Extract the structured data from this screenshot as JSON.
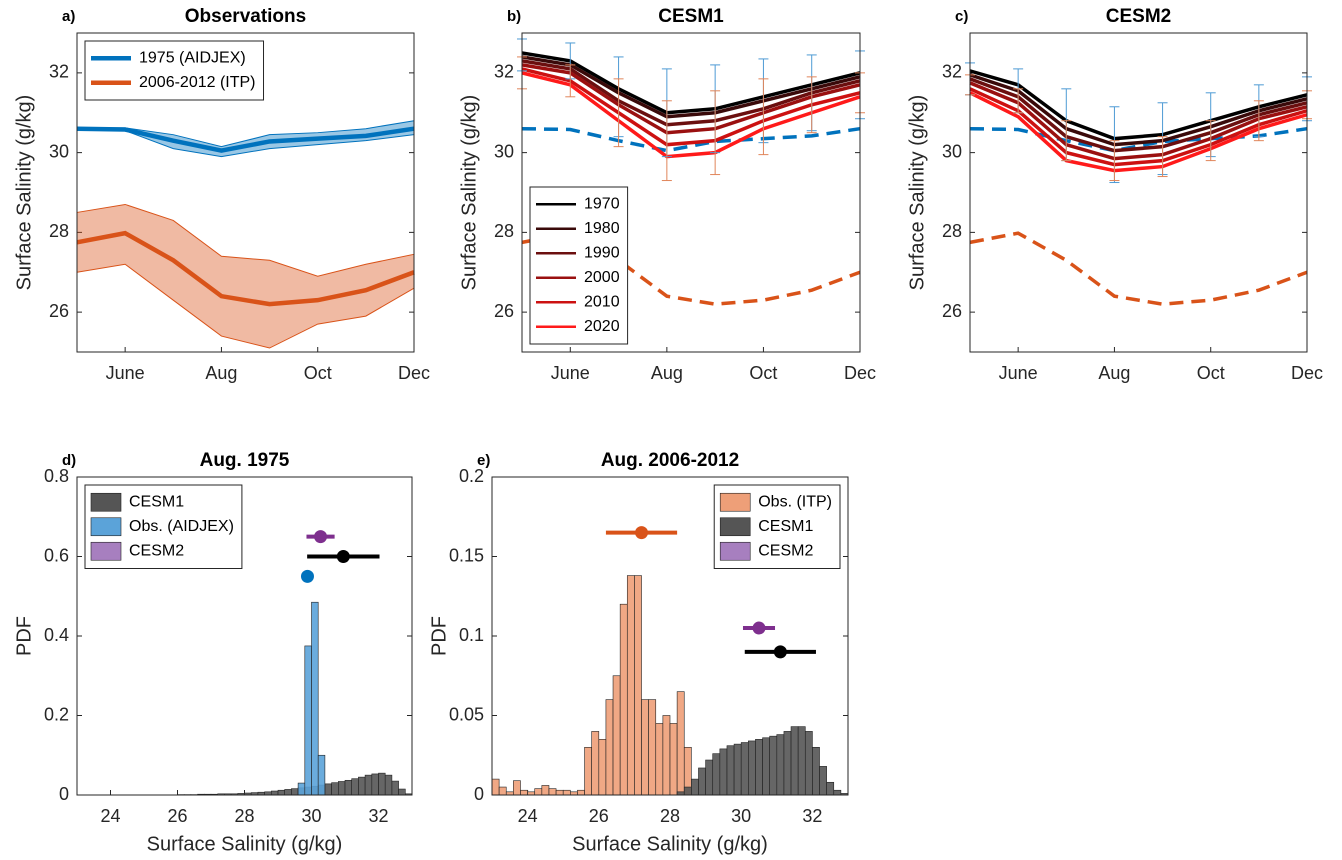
{
  "chart_data": [
    {
      "type": "line",
      "panel_label": "a)",
      "title": "Observations",
      "ylabel": "Surface Salinity (g/kg)",
      "categories": [
        null,
        "June",
        null,
        "Aug",
        null,
        "Oct",
        null,
        "Dec"
      ],
      "ylim": [
        25,
        33
      ],
      "yticks": [
        26,
        28,
        30,
        32
      ],
      "legend": "upper left",
      "series": [
        {
          "name": "1975 (AIDJEX)",
          "color": "#0072bd",
          "values": [
            30.6,
            30.58,
            30.3,
            30.05,
            30.28,
            30.35,
            30.42,
            30.6
          ],
          "lower": [
            30.58,
            30.55,
            30.1,
            29.9,
            30.1,
            30.2,
            30.3,
            30.45
          ],
          "upper": [
            30.62,
            30.62,
            30.45,
            30.15,
            30.45,
            30.5,
            30.6,
            30.8
          ]
        },
        {
          "name": "2006-2012 (ITP)",
          "color": "#d95319",
          "values": [
            27.75,
            27.98,
            27.3,
            26.4,
            26.2,
            26.3,
            26.55,
            27.0
          ],
          "lower": [
            27.0,
            27.2,
            26.3,
            25.4,
            25.1,
            25.7,
            25.9,
            26.6
          ],
          "upper": [
            28.5,
            28.7,
            28.3,
            27.4,
            27.3,
            26.9,
            27.2,
            27.45
          ]
        }
      ]
    },
    {
      "type": "line",
      "panel_label": "b)",
      "title": "CESM1",
      "ylabel": "Surface Salinity (g/kg)",
      "categories": [
        null,
        "June",
        null,
        "Aug",
        null,
        "Oct",
        null,
        "Dec"
      ],
      "ylim": [
        25,
        33
      ],
      "yticks": [
        26,
        28,
        30,
        32
      ],
      "legend": "lower left",
      "reference_lines": [
        {
          "color": "#0072bd",
          "dashed": true,
          "values": [
            30.6,
            30.58,
            30.3,
            30.05,
            30.28,
            30.35,
            30.42,
            30.6
          ]
        },
        {
          "color": "#d95319",
          "dashed": true,
          "values": [
            27.75,
            27.98,
            27.3,
            26.4,
            26.2,
            26.3,
            26.55,
            27.0
          ]
        }
      ],
      "errorbars": [
        {
          "color": "#4d9ad4",
          "values": [
            32.45,
            32.3,
            31.4,
            31.0,
            31.1,
            31.3,
            31.5,
            31.7
          ],
          "errors": [
            0.4,
            0.45,
            1.0,
            1.1,
            1.1,
            1.05,
            0.95,
            0.85
          ]
        },
        {
          "color": "#e0855a",
          "values": [
            32.0,
            31.8,
            31.0,
            30.3,
            30.5,
            30.9,
            31.2,
            31.5
          ],
          "errors": [
            0.4,
            0.4,
            0.85,
            1.0,
            1.05,
            0.95,
            0.7,
            0.5
          ]
        }
      ],
      "series": [
        {
          "name": "1970",
          "color": "#000000",
          "values": [
            32.5,
            32.3,
            31.6,
            31.0,
            31.1,
            31.4,
            31.7,
            32.0
          ]
        },
        {
          "name": "1980",
          "color": "#3a0a0a",
          "values": [
            32.4,
            32.2,
            31.5,
            30.9,
            31.0,
            31.3,
            31.6,
            31.9
          ]
        },
        {
          "name": "1990",
          "color": "#6b0f0f",
          "values": [
            32.3,
            32.1,
            31.3,
            30.7,
            30.8,
            31.1,
            31.5,
            31.8
          ]
        },
        {
          "name": "2000",
          "color": "#9a1010",
          "values": [
            32.2,
            32.0,
            31.2,
            30.5,
            30.6,
            31.0,
            31.4,
            31.7
          ]
        },
        {
          "name": "2010",
          "color": "#cc1111",
          "values": [
            32.1,
            31.8,
            31.0,
            30.2,
            30.3,
            30.8,
            31.2,
            31.5
          ]
        },
        {
          "name": "2020",
          "color": "#ff1a1a",
          "values": [
            32.0,
            31.7,
            30.8,
            29.9,
            30.0,
            30.6,
            31.0,
            31.4
          ]
        }
      ]
    },
    {
      "type": "line",
      "panel_label": "c)",
      "title": "CESM2",
      "ylabel": "Surface Salinity (g/kg)",
      "categories": [
        null,
        "June",
        null,
        "Aug",
        null,
        "Oct",
        null,
        "Dec"
      ],
      "ylim": [
        25,
        33
      ],
      "yticks": [
        26,
        28,
        30,
        32
      ],
      "reference_lines": [
        {
          "color": "#0072bd",
          "dashed": true,
          "values": [
            30.6,
            30.58,
            30.3,
            30.05,
            30.28,
            30.35,
            30.42,
            30.6
          ]
        },
        {
          "color": "#d95319",
          "dashed": true,
          "values": [
            27.75,
            27.98,
            27.3,
            26.4,
            26.2,
            26.3,
            26.55,
            27.0
          ]
        }
      ],
      "errorbars": [
        {
          "color": "#4d9ad4",
          "values": [
            31.85,
            31.55,
            30.7,
            30.2,
            30.35,
            30.7,
            31.05,
            31.35
          ],
          "errors": [
            0.4,
            0.55,
            0.9,
            0.95,
            0.9,
            0.8,
            0.65,
            0.55
          ]
        },
        {
          "color": "#e0855a",
          "values": [
            31.7,
            31.3,
            30.3,
            29.8,
            29.9,
            30.3,
            30.8,
            31.2
          ],
          "errors": [
            0.25,
            0.3,
            0.5,
            0.5,
            0.5,
            0.5,
            0.5,
            0.35
          ]
        }
      ],
      "series": [
        {
          "color": "#000000",
          "values": [
            32.05,
            31.7,
            30.8,
            30.35,
            30.45,
            30.8,
            31.15,
            31.45
          ]
        },
        {
          "color": "#3a0a0a",
          "values": [
            31.95,
            31.55,
            30.6,
            30.2,
            30.3,
            30.65,
            31.05,
            31.35
          ]
        },
        {
          "color": "#6b0f0f",
          "values": [
            31.85,
            31.4,
            30.4,
            30.05,
            30.15,
            30.5,
            30.95,
            31.25
          ]
        },
        {
          "color": "#9a1010",
          "values": [
            31.75,
            31.25,
            30.2,
            29.85,
            29.95,
            30.35,
            30.85,
            31.15
          ]
        },
        {
          "color": "#cc1111",
          "values": [
            31.6,
            31.05,
            30.0,
            29.7,
            29.8,
            30.2,
            30.7,
            31.05
          ]
        },
        {
          "color": "#ff1a1a",
          "values": [
            31.5,
            30.9,
            29.8,
            29.55,
            29.65,
            30.1,
            30.6,
            30.95
          ]
        }
      ]
    },
    {
      "type": "histogram",
      "panel_label": "d)",
      "title": "Aug. 1975",
      "ylabel": "PDF",
      "xlabel": "Surface Salinity (g/kg)",
      "xlim": [
        23,
        33
      ],
      "xticks": [
        24,
        26,
        28,
        30,
        32
      ],
      "ylim": [
        0,
        0.8
      ],
      "yticks": [
        0,
        0.2,
        0.4,
        0.6,
        0.8
      ],
      "legend": "upper left",
      "series": [
        {
          "name": "CESM1",
          "color": "#555555",
          "bins": [
            26.0,
            26.2,
            26.4,
            26.6,
            26.8,
            27.0,
            27.2,
            27.4,
            27.6,
            27.8,
            28.0,
            28.2,
            28.4,
            28.6,
            28.8,
            29.0,
            29.2,
            29.4,
            29.6,
            29.8,
            30.0,
            30.2,
            30.4,
            30.6,
            30.8,
            31.0,
            31.2,
            31.4,
            31.6,
            31.8,
            32.0,
            32.2,
            32.4,
            32.6,
            32.8,
            33.0
          ],
          "values": [
            0.001,
            0.001,
            0.001,
            0.002,
            0.002,
            0.002,
            0.003,
            0.003,
            0.003,
            0.004,
            0.005,
            0.006,
            0.007,
            0.008,
            0.01,
            0.012,
            0.014,
            0.016,
            0.018,
            0.02,
            0.022,
            0.025,
            0.028,
            0.031,
            0.034,
            0.037,
            0.041,
            0.045,
            0.05,
            0.053,
            0.055,
            0.05,
            0.035,
            0.015,
            0.003
          ],
          "mean": {
            "x": 30.95,
            "xerr": 1.08,
            "y": 0.6
          },
          "marker_color": "#000000"
        },
        {
          "name": "Obs. (AIDJEX)",
          "color": "#5ba3d9",
          "bins": [
            29.6,
            29.8,
            30.0,
            30.2,
            30.4
          ],
          "values": [
            0.03,
            0.375,
            0.485,
            0.1
          ],
          "mean": {
            "x": 29.88,
            "y": 0.55
          },
          "marker_color": "#0072bd"
        },
        {
          "name": "CESM2",
          "color": "#a77fbf",
          "mean": {
            "x": 30.27,
            "xerr": 0.42,
            "y": 0.65
          },
          "marker_color": "#7e2f8e"
        }
      ]
    },
    {
      "type": "histogram",
      "panel_label": "e)",
      "title": "Aug. 2006-2012",
      "ylabel": "PDF",
      "xlabel": "Surface Salinity (g/kg)",
      "xlim": [
        23,
        33
      ],
      "xticks": [
        24,
        26,
        28,
        30,
        32
      ],
      "ylim": [
        0,
        0.2
      ],
      "yticks": [
        0,
        0.05,
        0.1,
        0.15,
        0.2
      ],
      "legend": "upper right",
      "series": [
        {
          "name": "Obs. (ITP)",
          "color": "#ee9f78",
          "bins": [
            23.0,
            23.2,
            23.4,
            23.6,
            23.8,
            24.0,
            24.2,
            24.4,
            24.6,
            24.8,
            25.0,
            25.2,
            25.4,
            25.6,
            25.8,
            26.0,
            26.2,
            26.4,
            26.6,
            26.8,
            27.0,
            27.2,
            27.4,
            27.6,
            27.8,
            28.0,
            28.2,
            28.4,
            28.6
          ],
          "values": [
            0.01,
            0.005,
            0.002,
            0.009,
            0.003,
            0.002,
            0.004,
            0.006,
            0.004,
            0.003,
            0.003,
            0.002,
            0.003,
            0.03,
            0.04,
            0.035,
            0.06,
            0.075,
            0.12,
            0.138,
            0.138,
            0.06,
            0.06,
            0.045,
            0.05,
            0.045,
            0.065,
            0.03
          ],
          "mean": {
            "x": 27.2,
            "xerr": 1.0,
            "y": 0.165
          },
          "marker_color": "#d95319"
        },
        {
          "name": "CESM1",
          "color": "#555555",
          "bins": [
            28.2,
            28.4,
            28.6,
            28.8,
            29.0,
            29.2,
            29.4,
            29.6,
            29.8,
            30.0,
            30.2,
            30.4,
            30.6,
            30.8,
            31.0,
            31.2,
            31.4,
            31.6,
            31.8,
            32.0,
            32.2,
            32.4,
            32.6,
            32.8,
            33.0
          ],
          "values": [
            0.002,
            0.005,
            0.01,
            0.017,
            0.022,
            0.026,
            0.029,
            0.031,
            0.032,
            0.033,
            0.034,
            0.035,
            0.036,
            0.037,
            0.038,
            0.04,
            0.043,
            0.043,
            0.04,
            0.03,
            0.018,
            0.008,
            0.003,
            0.001
          ],
          "mean": {
            "x": 31.1,
            "xerr": 1.0,
            "y": 0.09
          },
          "marker_color": "#000000"
        },
        {
          "name": "CESM2",
          "color": "#a77fbf",
          "mean": {
            "x": 30.5,
            "xerr": 0.45,
            "y": 0.105
          },
          "marker_color": "#7e2f8e"
        }
      ]
    }
  ]
}
